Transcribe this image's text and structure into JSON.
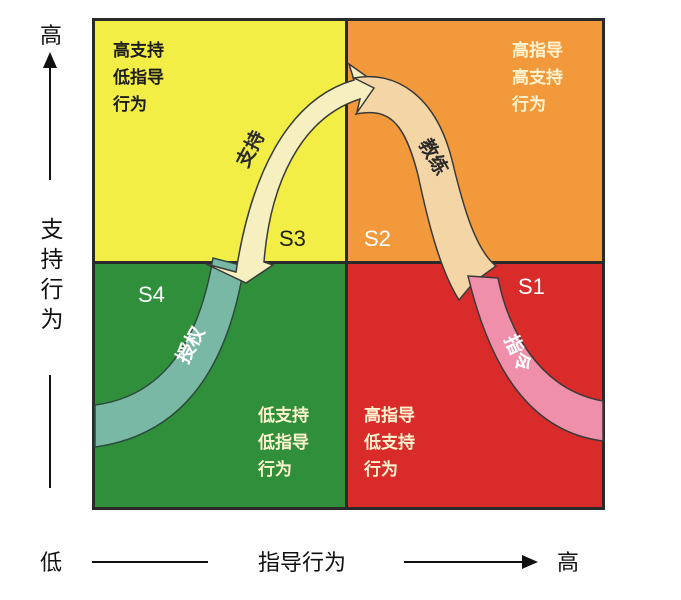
{
  "quadrants": {
    "s3": {
      "code": "S3",
      "lines": [
        "高支持",
        "低指导",
        "行为"
      ],
      "color": "#f2ee45"
    },
    "s2": {
      "code": "S2",
      "lines": [
        "高指导",
        "高支持",
        "行为"
      ],
      "color": "#f29a3b"
    },
    "s4": {
      "code": "S4",
      "lines": [
        "低支持",
        "低指导",
        "行为"
      ],
      "color": "#2f8f3a"
    },
    "s1": {
      "code": "S1",
      "lines": [
        "高指导",
        "低支持",
        "行为"
      ],
      "color": "#d82b2a"
    }
  },
  "arrow_labels": {
    "directing": "指令",
    "coaching": "教练",
    "supporting": "支持",
    "delegating": "授权"
  },
  "axes": {
    "y": {
      "label": [
        "支",
        "持",
        "行",
        "为"
      ],
      "high": "高"
    },
    "x": {
      "label": "指导行为",
      "low": "低",
      "high": "高"
    }
  }
}
